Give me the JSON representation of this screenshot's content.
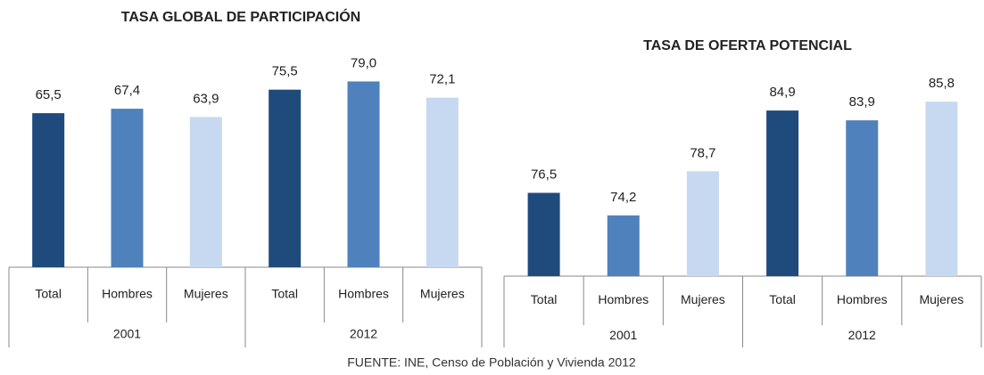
{
  "chart_data": [
    {
      "type": "bar",
      "title": "TASA GLOBAL DE PARTICIPACIÓN",
      "categories": [
        "Total",
        "Hombres",
        "Mujeres",
        "Total",
        "Hombres",
        "Mujeres"
      ],
      "groups": [
        "2001",
        "2012"
      ],
      "values": [
        65.5,
        67.4,
        63.9,
        75.5,
        79.0,
        72.1
      ],
      "value_labels": [
        "65,5",
        "67,4",
        "63,9",
        "75,5",
        "79,0",
        "72,1"
      ],
      "colors": [
        "#1f4a7c",
        "#4f81bd",
        "#c6d9f1"
      ],
      "ylim": [
        0,
        100
      ]
    },
    {
      "type": "bar",
      "title": "TASA DE OFERTA POTENCIAL",
      "categories": [
        "Total",
        "Hombres",
        "Mujeres",
        "Total",
        "Hombres",
        "Mujeres"
      ],
      "groups": [
        "2001",
        "2012"
      ],
      "values": [
        76.5,
        74.2,
        78.7,
        84.9,
        83.9,
        85.8
      ],
      "value_labels": [
        "76,5",
        "74,2",
        "78,7",
        "84,9",
        "83,9",
        "85,8"
      ],
      "colors": [
        "#1f4a7c",
        "#4f81bd",
        "#c6d9f1"
      ],
      "ylim": [
        68,
        90
      ]
    }
  ],
  "source": "FUENTE: INE, Censo de Población y Vivienda 2012"
}
